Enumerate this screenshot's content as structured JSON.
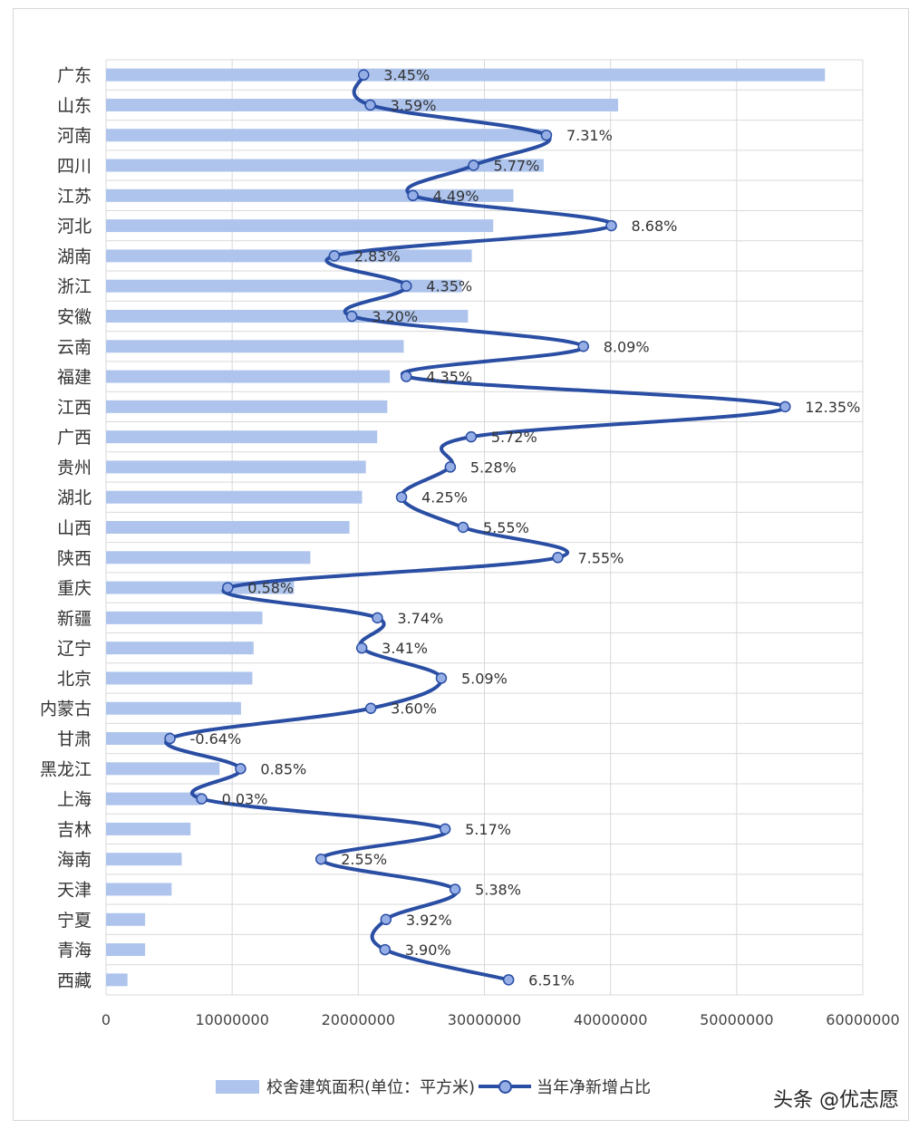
{
  "chart_data": {
    "type": "bar",
    "orientation": "horizontal",
    "combo": "bar + line (secondary axis)",
    "title": "",
    "xlabel": "",
    "ylabel": "",
    "xlim": [
      0,
      60000000
    ],
    "x_ticks": [
      "0",
      "10000000",
      "20000000",
      "30000000",
      "40000000",
      "50000000",
      "60000000"
    ],
    "grid": true,
    "legend_position": "bottom",
    "categories": [
      "广东",
      "山东",
      "河南",
      "四川",
      "江苏",
      "河北",
      "湖南",
      "浙江",
      "安徽",
      "云南",
      "福建",
      "江西",
      "广西",
      "贵州",
      "湖北",
      "山西",
      "陕西",
      "重庆",
      "新疆",
      "辽宁",
      "北京",
      "内蒙古",
      "甘肃",
      "黑龙江",
      "上海",
      "吉林",
      "海南",
      "天津",
      "宁夏",
      "青海",
      "西藏"
    ],
    "series": [
      {
        "name": "校舍建筑面积(单位：平方米)",
        "type": "bar",
        "color": "#aec4ec",
        "values": [
          57000000,
          40600000,
          34800000,
          34700000,
          32300000,
          30700000,
          29000000,
          28200000,
          28700000,
          23600000,
          22500000,
          22300000,
          21500000,
          20600000,
          20300000,
          19300000,
          16200000,
          14900000,
          12400000,
          11700000,
          11600000,
          10700000,
          5200000,
          9000000,
          7500000,
          6700000,
          6000000,
          5200000,
          3100000,
          3100000,
          1700000
        ]
      },
      {
        "name": "当年净新增占比",
        "type": "line",
        "color": "#2a4ea3",
        "marker_color": "#95aee6",
        "values": [
          3.45,
          3.59,
          7.31,
          5.77,
          4.49,
          8.68,
          2.83,
          4.35,
          3.2,
          8.09,
          4.35,
          12.35,
          5.72,
          5.28,
          4.25,
          5.55,
          7.55,
          0.58,
          3.74,
          3.41,
          5.09,
          3.6,
          -0.64,
          0.85,
          0.03,
          5.17,
          2.55,
          5.38,
          3.92,
          3.9,
          6.51
        ],
        "labels": [
          "3.45%",
          "3.59%",
          "7.31%",
          "5.77%",
          "4.49%",
          "8.68%",
          "2.83%",
          "4.35%",
          "3.20%",
          "8.09%",
          "4.35%",
          "12.35%",
          "5.72%",
          "5.28%",
          "4.25%",
          "5.55%",
          "7.55%",
          "0.58%",
          "3.74%",
          "3.41%",
          "5.09%",
          "3.60%",
          "-0.64%",
          "0.85%",
          "0.03%",
          "5.17%",
          "2.55%",
          "5.38%",
          "3.92%",
          "3.90%",
          "6.51%"
        ]
      }
    ]
  },
  "legend": {
    "bar_label": "校舍建筑面积(单位：平方米)",
    "line_label": "当年净新增占比"
  },
  "credit": "头条 @优志愿"
}
